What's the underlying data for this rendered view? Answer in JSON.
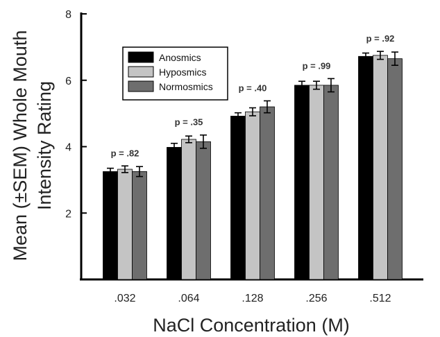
{
  "chart_data": {
    "type": "bar",
    "xlabel": "NaCl Concentration (M)",
    "ylabel_line1": "Mean (±SEM) Whole Mouth",
    "ylabel_line2": "Intensity Rating",
    "categories": [
      ".032",
      ".064",
      ".128",
      ".256",
      ".512"
    ],
    "ylim": [
      0,
      8
    ],
    "yticks": [
      2,
      4,
      6,
      8
    ],
    "series": [
      {
        "name": "Anosmics",
        "color": "#000000",
        "values": [
          3.25,
          3.98,
          4.92,
          5.85,
          6.72
        ],
        "sem": [
          0.1,
          0.12,
          0.1,
          0.12,
          0.1
        ]
      },
      {
        "name": "Hyposmics",
        "color": "#c4c4c4",
        "values": [
          3.32,
          4.22,
          5.05,
          5.85,
          6.75
        ],
        "sem": [
          0.1,
          0.1,
          0.12,
          0.12,
          0.12
        ]
      },
      {
        "name": "Normosmics",
        "color": "#6e6e6e",
        "values": [
          3.25,
          4.15,
          5.2,
          5.85,
          6.65
        ],
        "sem": [
          0.15,
          0.2,
          0.18,
          0.2,
          0.2
        ]
      }
    ],
    "p_values": [
      "p = .82",
      "p = .35",
      "p = .40",
      "p = .99",
      "p = .92"
    ],
    "legend_position": "upper-left",
    "grid": false
  }
}
